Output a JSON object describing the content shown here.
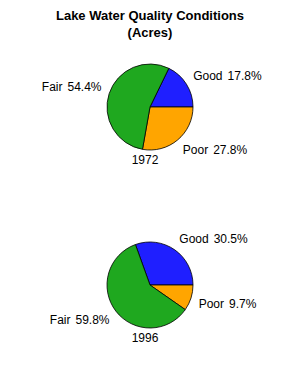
{
  "header": {
    "title": "Lake Water Quality Conditions",
    "subtitle": "(Acres)"
  },
  "chart_data": [
    {
      "type": "pie",
      "title": "1972",
      "categories": [
        "Good",
        "Poor",
        "Fair"
      ],
      "values": [
        17.8,
        27.8,
        54.4
      ],
      "value_labels": [
        "17.8%",
        "27.8%",
        "54.4%"
      ],
      "colors": [
        "#1f1fff",
        "#ffa500",
        "#1fa81f"
      ],
      "data_labels": true
    },
    {
      "type": "pie",
      "title": "1996",
      "categories": [
        "Good",
        "Poor",
        "Fair"
      ],
      "values": [
        30.5,
        9.7,
        59.8
      ],
      "value_labels": [
        "30.5%",
        "9.7%",
        "59.8%"
      ],
      "colors": [
        "#1f1fff",
        "#ffa500",
        "#1fa81f"
      ],
      "data_labels": true
    }
  ]
}
